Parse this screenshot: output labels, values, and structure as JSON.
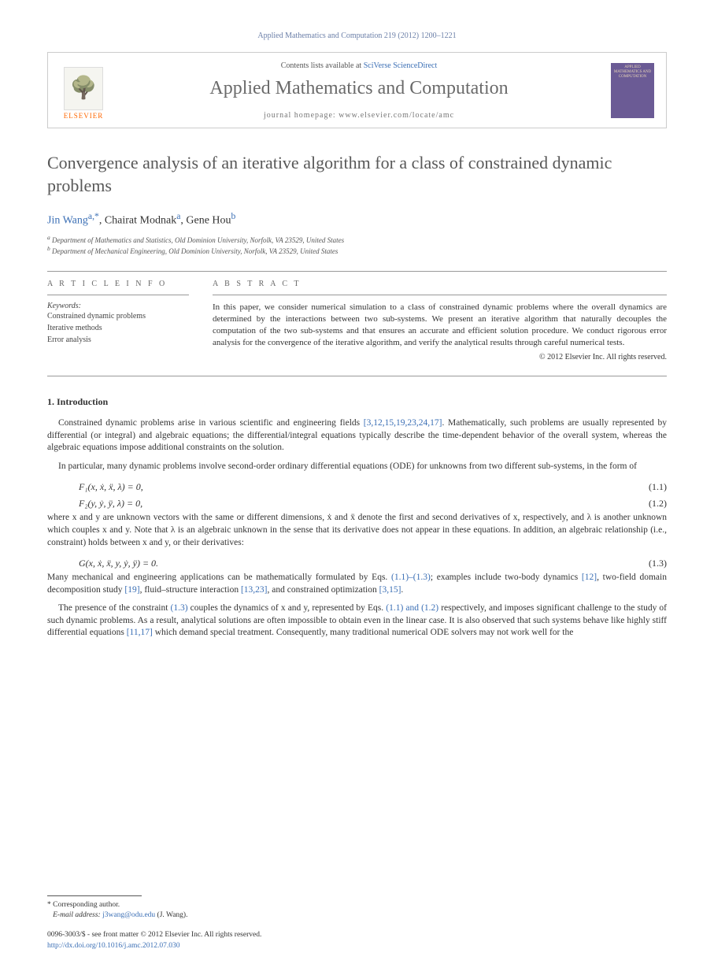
{
  "journal_ref": "Applied Mathematics and Computation 219 (2012) 1200–1221",
  "header": {
    "contents_prefix": "Contents lists available at ",
    "contents_link": "SciVerse ScienceDirect",
    "journal_name": "Applied Mathematics and Computation",
    "homepage_prefix": "journal homepage: ",
    "homepage_url": "www.elsevier.com/locate/amc",
    "elsevier_label": "ELSEVIER",
    "cover_text": "APPLIED MATHEMATICS AND COMPUTATION"
  },
  "title": "Convergence analysis of an iterative algorithm for a class of constrained dynamic problems",
  "authors_html": "Jin Wang",
  "author1": "Jin Wang",
  "author1_sup": "a,*",
  "author2": ", Chairat Modnak",
  "author2_sup": "a",
  "author3": ", Gene Hou",
  "author3_sup": "b",
  "affiliations": {
    "a": "Department of Mathematics and Statistics, Old Dominion University, Norfolk, VA 23529, United States",
    "b": "Department of Mechanical Engineering, Old Dominion University, Norfolk, VA 23529, United States"
  },
  "article_info_label": "A R T I C L E   I N F O",
  "abstract_label": "A B S T R A C T",
  "keywords_label": "Keywords:",
  "keywords": [
    "Constrained dynamic problems",
    "Iterative methods",
    "Error analysis"
  ],
  "abstract": "In this paper, we consider numerical simulation to a class of constrained dynamic problems where the overall dynamics are determined by the interactions between two sub-systems. We present an iterative algorithm that naturally decouples the computation of the two sub-systems and that ensures an accurate and efficient solution procedure. We conduct rigorous error analysis for the convergence of the iterative algorithm, and verify the analytical results through careful numerical tests.",
  "copyright": "© 2012 Elsevier Inc. All rights reserved.",
  "intro_heading": "1. Introduction",
  "para1_a": "Constrained dynamic problems arise in various scientific and engineering fields ",
  "para1_ref": "[3,12,15,19,23,24,17]",
  "para1_b": ". Mathematically, such problems are usually represented by differential (or integral) and algebraic equations; the differential/integral equations typically describe the time-dependent behavior of the overall system, whereas the algebraic equations impose additional constraints on the solution.",
  "para2": "In particular, many dynamic problems involve second-order ordinary differential equations (ODE) for unknowns from two different sub-systems, in the form of",
  "eq1": "F₁(x, ẋ, ẍ, λ) = 0,",
  "eq1_num": "(1.1)",
  "eq2": "F₂(y, ẏ, ÿ, λ) = 0,",
  "eq2_num": "(1.2)",
  "para3": "where x and y are unknown vectors with the same or different dimensions, ẋ and ẍ denote the first and second derivatives of x, respectively, and λ is another unknown which couples x and y. Note that λ is an algebraic unknown in the sense that its derivative does not appear in these equations. In addition, an algebraic relationship (i.e., constraint) holds between x and y, or their derivatives:",
  "eq3": "G(x, ẋ, ẍ, y, ẏ, ÿ) = 0.",
  "eq3_num": "(1.3)",
  "para4_a": "Many mechanical and engineering applications can be mathematically formulated by Eqs. ",
  "para4_ref1": "(1.1)–(1.3)",
  "para4_b": "; examples include two-body dynamics ",
  "para4_ref2": "[12]",
  "para4_c": ", two-field domain decomposition study ",
  "para4_ref3": "[19]",
  "para4_d": ", fluid–structure interaction ",
  "para4_ref4": "[13,23]",
  "para4_e": ", and constrained optimization ",
  "para4_ref5": "[3,15]",
  "para4_f": ".",
  "para5_a": "The presence of the constraint ",
  "para5_ref1": "(1.3)",
  "para5_b": " couples the dynamics of x and y, represented by Eqs. ",
  "para5_ref2": "(1.1) and (1.2)",
  "para5_c": " respectively, and imposes significant challenge to the study of such dynamic problems. As a result, analytical solutions are often impossible to obtain even in the linear case. It is also observed that such systems behave like highly stiff differential equations ",
  "para5_ref3": "[11,17]",
  "para5_d": " which demand special treatment. Consequently, many traditional numerical ODE solvers may not work well for the",
  "corr_author": "* Corresponding author.",
  "email_label": "E-mail address: ",
  "email": "j3wang@odu.edu",
  "email_suffix": " (J. Wang).",
  "issn_line": "0096-3003/$ - see front matter © 2012 Elsevier Inc. All rights reserved.",
  "doi": "http://dx.doi.org/10.1016/j.amc.2012.07.030"
}
